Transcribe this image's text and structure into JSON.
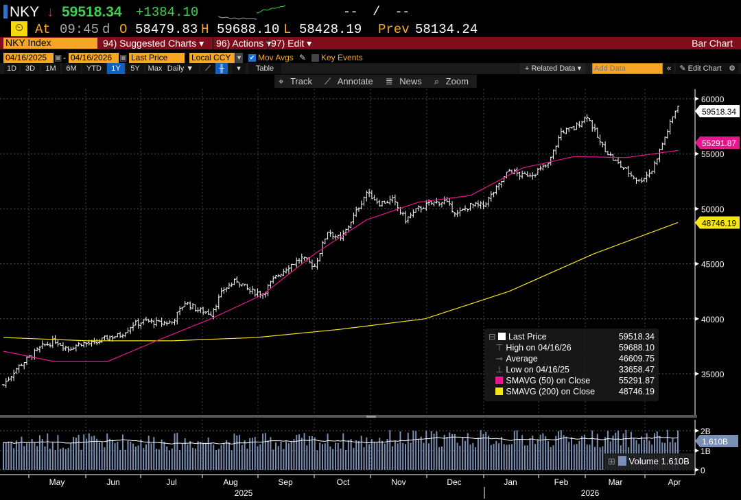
{
  "header": {
    "ticker": "NKY",
    "direction_icon": "down-arrow",
    "last": "59518.34",
    "change": "+1384.10",
    "bid_ask": "--  /  --",
    "at_label": "At",
    "time": "09:45",
    "d_label": "d",
    "open_label": "O",
    "open": "58479.83",
    "high_label": "H",
    "high": "59688.10",
    "low_label": "L",
    "low": "58428.19",
    "prev_label": "Prev",
    "prev": "58134.24"
  },
  "menu": {
    "security": "NKY Index",
    "suggested": "94) Suggested Charts",
    "actions": "96) Actions",
    "edit": "97) Edit",
    "chart_type": "Bar Chart"
  },
  "settings": {
    "start_date": "04/16/2025",
    "end_date": "04/16/2026",
    "field": "Last Price",
    "currency": "Local CCY",
    "mov_avgs": "Mov Avgs",
    "key_events": "Key Events"
  },
  "periods": [
    "1D",
    "3D",
    "1M",
    "6M",
    "YTD",
    "1Y",
    "5Y",
    "Max"
  ],
  "selected_period": "1Y",
  "frequency": "Daily ▼",
  "table_label": "Table",
  "related_data": "+ Related Data ▾",
  "add_data_placeholder": "Add Data",
  "edit_chart": "Edit Chart",
  "tools": {
    "track": "Track",
    "annotate": "Annotate",
    "news": "News",
    "zoom": "Zoom"
  },
  "legend": [
    {
      "label": "Last Price",
      "value": "59518.34",
      "color": "#ffffff"
    },
    {
      "label": "High on 04/16/26",
      "value": "59688.10"
    },
    {
      "label": "Average",
      "value": "46609.75"
    },
    {
      "label": "Low on 04/16/25",
      "value": "33658.47"
    },
    {
      "label": "SMAVG (50)  on Close",
      "value": "55291.87",
      "color": "#e8168c"
    },
    {
      "label": "SMAVG (200)  on Close",
      "value": "48746.19",
      "color": "#f5e61a"
    }
  ],
  "tags": {
    "last": "59518.34",
    "sma50": "55291.87",
    "sma200": "48746.19",
    "volume": "1.610B"
  },
  "volume_legend": {
    "label": "Volume",
    "value": "1.610B"
  },
  "chart_data": {
    "type": "bar",
    "y_ticks": [
      "60000",
      "55000",
      "50000",
      "45000",
      "40000",
      "35000"
    ],
    "ylim": [
      33000,
      61000
    ],
    "vol_ticks": [
      "2B",
      "1B",
      "0"
    ],
    "months": [
      "May",
      "Jun",
      "Jul",
      "Aug",
      "Sep",
      "Oct",
      "Nov",
      "Dec",
      "Jan",
      "Feb",
      "Mar",
      "Apr"
    ],
    "years": [
      "2025",
      "2026"
    ],
    "weekly_close": [
      34000,
      35500,
      36500,
      37500,
      38000,
      37300,
      37800,
      37700,
      38300,
      38500,
      39500,
      39800,
      39600,
      39700,
      41500,
      40800,
      40500,
      42700,
      43500,
      42500,
      42300,
      43800,
      44800,
      45500,
      44800,
      48000,
      47200,
      49300,
      51500,
      50500,
      50800,
      49000,
      50000,
      50500,
      50700,
      49500,
      50300,
      50300,
      51800,
      53500,
      53000,
      53300,
      54000,
      57000,
      57300,
      58500,
      56000,
      54500,
      53500,
      52500,
      53500,
      56500,
      59500
    ],
    "sma50": [
      37050,
      36100,
      36100,
      38100,
      40000,
      42200,
      45900,
      49000,
      50600,
      51200,
      53700,
      54750,
      54650,
      55300
    ],
    "sma200": [
      38300,
      38000,
      38000,
      38300,
      39050,
      40000,
      42500,
      45900,
      48750
    ]
  }
}
